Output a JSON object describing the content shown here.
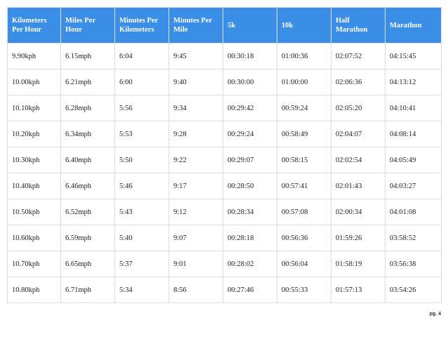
{
  "table": {
    "headers": [
      "Kilometers Per Hour",
      "Miles Per Hour",
      "Minutes Per Kilometers",
      "Minutes Per Mile",
      "5k",
      "10k",
      "Half Marathon",
      "Marathon"
    ],
    "rows": [
      [
        "9.90kph",
        "6.15mph",
        "6:04",
        "9:45",
        "00:30:18",
        "01:00:36",
        "02:07:52",
        "04:15:45"
      ],
      [
        "10.00kph",
        "6.21mph",
        "6:00",
        "9:40",
        "00:30:00",
        "01:00:00",
        "02:06:36",
        "04:13:12"
      ],
      [
        "10.10kph",
        "6.28mph",
        "5:56",
        "9:34",
        "00:29:42",
        "00:59:24",
        "02:05:20",
        "04:10:41"
      ],
      [
        "10.20kph",
        "6.34mph",
        "5:53",
        "9:28",
        "00:29:24",
        "00:58:49",
        "02:04:07",
        "04:08:14"
      ],
      [
        "10.30kph",
        "6.40mph",
        "5:50",
        "9:22",
        "00:29:07",
        "00:58:15",
        "02:02:54",
        "04:05:49"
      ],
      [
        "10.40kph",
        "6.46mph",
        "5:46",
        "9:17",
        "00:28:50",
        "00:57:41",
        "02:01:43",
        "04:03:27"
      ],
      [
        "10.50kph",
        "6.52mph",
        "5:43",
        "9:12",
        "00:28:34",
        "00:57:08",
        "02:00:34",
        "04:01:08"
      ],
      [
        "10.60kph",
        "6.59mph",
        "5:40",
        "9:07",
        "00:28:18",
        "00:56:36",
        "01:59:26",
        "03:58:52"
      ],
      [
        "10.70kph",
        "6.65mph",
        "5:37",
        "9:01",
        "00:28:02",
        "00:56:04",
        "01:58:19",
        "03:56:38"
      ],
      [
        "10.80kph",
        "6.71mph",
        "5:34",
        "8:56",
        "00:27:46",
        "00:55:33",
        "01:57:13",
        "03:54:26"
      ]
    ]
  },
  "footer": {
    "page_label": "pg. 4"
  },
  "colors": {
    "header_background": "#3a8ee6",
    "header_text": "#ffffff",
    "border": "#dddddd"
  }
}
